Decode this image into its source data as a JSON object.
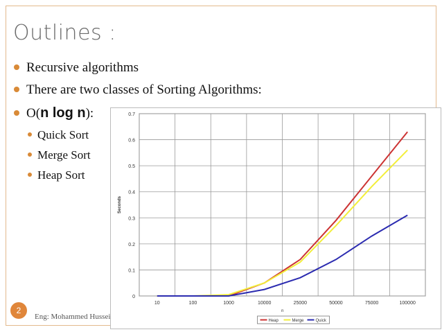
{
  "slide": {
    "title": "Outlines :",
    "bullets": [
      "Recursive algorithms",
      "There are two classes of Sorting Algorithms:"
    ],
    "complexity": {
      "prefix": "O(",
      "term": "n log n",
      "suffix": "):"
    },
    "sub_bullets": [
      "Quick Sort",
      "Merge Sort",
      "Heap Sort"
    ],
    "page_number": "2",
    "footer": "Eng: Mohammed Hussein"
  },
  "colors": {
    "accent": "#e0863a",
    "heap": "#cc3333",
    "merge": "#f2ee3a",
    "quick": "#2b2bb0"
  },
  "chart_data": {
    "type": "line",
    "categories": [
      "10",
      "100",
      "1000",
      "10000",
      "25000",
      "50000",
      "75000",
      "100000"
    ],
    "xlabel": "n",
    "ylabel": "Seconds",
    "ylim": [
      0,
      0.7
    ],
    "yticks": [
      "0",
      "0.1",
      "0.2",
      "0.3",
      "0.4",
      "0.5",
      "0.6",
      "0.7"
    ],
    "grid": true,
    "legend_position": "bottom",
    "series": [
      {
        "name": "Heap",
        "values": [
          0,
          0,
          0,
          0.05,
          0.14,
          0.29,
          0.46,
          0.63
        ]
      },
      {
        "name": "Merge",
        "values": [
          0,
          0,
          0.005,
          0.05,
          0.13,
          0.27,
          0.42,
          0.56
        ]
      },
      {
        "name": "Quick",
        "values": [
          0,
          0,
          0,
          0.025,
          0.07,
          0.14,
          0.23,
          0.31
        ]
      }
    ]
  }
}
